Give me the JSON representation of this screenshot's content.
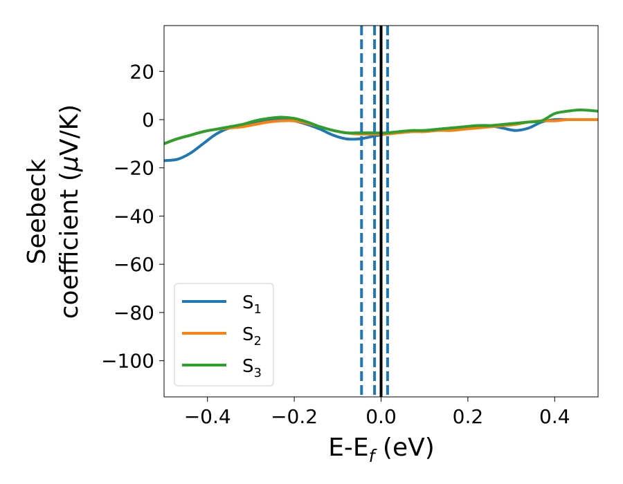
{
  "chart_data": {
    "type": "line",
    "xlabel": {
      "main": "E-E",
      "sub": "f",
      "suffix": " (eV)"
    },
    "ylabel": {
      "line1": "Seebeck",
      "line2_prefix": "coefficient  (",
      "line2_mu": "μ",
      "line2_suffix": "V/K)"
    },
    "xlim": [
      -0.5,
      0.5
    ],
    "ylim": [
      -115,
      39
    ],
    "xticks": [
      -0.4,
      -0.2,
      0.0,
      0.2,
      0.4
    ],
    "xtick_labels": [
      "−0.4",
      "−0.2",
      "0.0",
      "0.2",
      "0.4"
    ],
    "yticks": [
      20,
      0,
      -20,
      -40,
      -60,
      -80,
      -100
    ],
    "ytick_labels": [
      "20",
      "0",
      "−20",
      "−40",
      "−60",
      "−80",
      "−100"
    ],
    "grid": false,
    "legend_position": "lower-left",
    "vlines": [
      {
        "x": -0.045,
        "style": "dashed",
        "color": "#1f77b4"
      },
      {
        "x": -0.015,
        "style": "dashed",
        "color": "#1f77b4"
      },
      {
        "x": 0.015,
        "style": "dashed",
        "color": "#1f77b4"
      },
      {
        "x": 0.0,
        "style": "solid",
        "color": "#000000"
      }
    ],
    "series": [
      {
        "name": "S",
        "sub": "1",
        "color": "#1f77b4",
        "x": [
          -0.5,
          -0.47,
          -0.44,
          -0.41,
          -0.38,
          -0.35,
          -0.32,
          -0.29,
          -0.26,
          -0.23,
          -0.2,
          -0.17,
          -0.14,
          -0.11,
          -0.08,
          -0.05,
          -0.02,
          0.01,
          0.04,
          0.07,
          0.1,
          0.13,
          0.16,
          0.19,
          0.22,
          0.25,
          0.28,
          0.31,
          0.34,
          0.37,
          0.4,
          0.43,
          0.46,
          0.5
        ],
        "y": [
          -17,
          -16.5,
          -14,
          -10,
          -6,
          -3.5,
          -2.5,
          -1.5,
          -0.5,
          0,
          -0.5,
          -2,
          -4,
          -6.5,
          -8,
          -8,
          -7,
          -6,
          -5.5,
          -5,
          -4.5,
          -4,
          -3.5,
          -3,
          -2.5,
          -2.5,
          -3.5,
          -4.5,
          -3.5,
          -1,
          0,
          0,
          0,
          0
        ]
      },
      {
        "name": "S",
        "sub": "2",
        "color": "#ff7f0e",
        "x": [
          -0.5,
          -0.47,
          -0.44,
          -0.41,
          -0.38,
          -0.35,
          -0.32,
          -0.29,
          -0.26,
          -0.23,
          -0.2,
          -0.17,
          -0.14,
          -0.11,
          -0.08,
          -0.05,
          -0.02,
          0.01,
          0.04,
          0.07,
          0.1,
          0.13,
          0.16,
          0.19,
          0.22,
          0.25,
          0.28,
          0.31,
          0.34,
          0.37,
          0.4,
          0.43,
          0.46,
          0.5
        ],
        "y": [
          -10,
          -8,
          -6.5,
          -5,
          -4,
          -3.5,
          -3,
          -2,
          -1,
          -0.5,
          -0.5,
          -1.5,
          -3,
          -4.5,
          -5.5,
          -6,
          -6,
          -6,
          -5.5,
          -5,
          -5,
          -4.5,
          -4.5,
          -4,
          -3.5,
          -3,
          -2.5,
          -2,
          -1,
          -0.5,
          -0.5,
          0,
          0,
          0
        ]
      },
      {
        "name": "S",
        "sub": "3",
        "color": "#2ca02c",
        "x": [
          -0.5,
          -0.47,
          -0.44,
          -0.41,
          -0.38,
          -0.35,
          -0.32,
          -0.29,
          -0.26,
          -0.23,
          -0.2,
          -0.17,
          -0.14,
          -0.11,
          -0.08,
          -0.05,
          -0.02,
          0.01,
          0.04,
          0.07,
          0.1,
          0.13,
          0.16,
          0.19,
          0.22,
          0.25,
          0.28,
          0.31,
          0.34,
          0.37,
          0.4,
          0.43,
          0.46,
          0.5
        ],
        "y": [
          -10,
          -8,
          -6.5,
          -5,
          -4,
          -3,
          -2,
          -0.5,
          0.5,
          1,
          0.5,
          -1,
          -3,
          -4.5,
          -5.5,
          -5.5,
          -5.5,
          -5.5,
          -5,
          -4.5,
          -4.5,
          -4,
          -3.5,
          -3,
          -2.5,
          -2.5,
          -2,
          -1.5,
          -1,
          -0.5,
          2.5,
          3.5,
          4,
          3.5
        ]
      }
    ]
  }
}
